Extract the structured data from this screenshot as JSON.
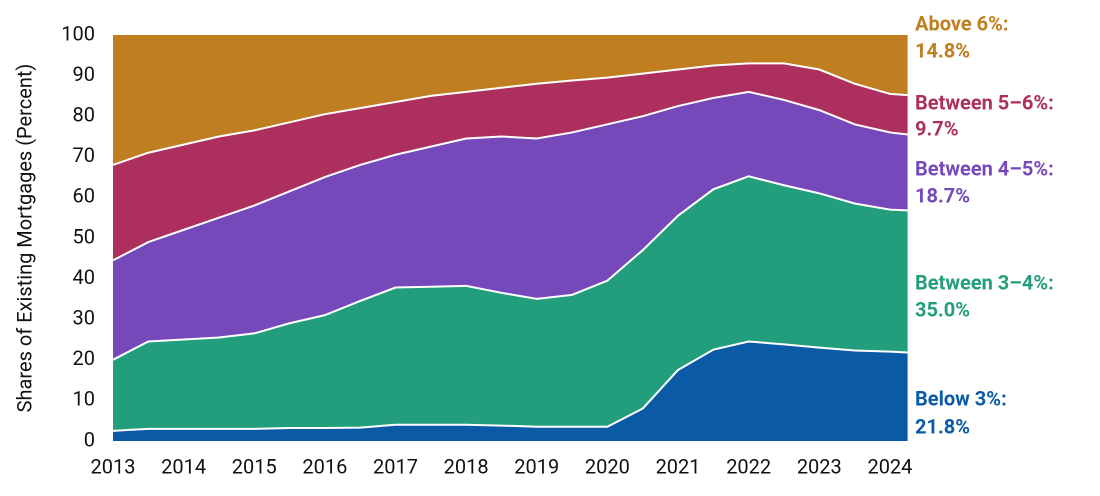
{
  "chart_data": {
    "type": "stacked-area",
    "y_label": "Shares of Existing Mortgages (Percent)",
    "x": [
      2013,
      2013.5,
      2014,
      2014.5,
      2015,
      2015.5,
      2016,
      2016.5,
      2017,
      2017.5,
      2018,
      2018.5,
      2019,
      2019.5,
      2020,
      2020.5,
      2021,
      2021.5,
      2022,
      2022.5,
      2023,
      2023.5,
      2024,
      2024.25
    ],
    "xlim": [
      2013,
      2024.25
    ],
    "xticks": [
      2013,
      2014,
      2015,
      2016,
      2017,
      2018,
      2019,
      2020,
      2021,
      2022,
      2023,
      2024
    ],
    "ylim": [
      0,
      100
    ],
    "yticks": [
      0,
      10,
      20,
      30,
      40,
      50,
      60,
      70,
      80,
      90,
      100
    ],
    "series": [
      {
        "name": "Below 3%:",
        "color": "#0a5aa6",
        "end_label": "21.8%",
        "values": [
          2.5,
          3,
          3,
          3,
          3,
          3.2,
          3.2,
          3.3,
          4,
          4,
          4,
          3.8,
          3.5,
          3.5,
          3.5,
          8,
          17.5,
          22.5,
          24.5,
          23.8,
          23,
          22.3,
          22,
          21.8
        ]
      },
      {
        "name": "Between 3–4%:",
        "color": "#229e7d",
        "end_label": "35.0%",
        "values": [
          17.5,
          21.5,
          22,
          22.5,
          23.5,
          25.8,
          27.8,
          31.2,
          33.8,
          34,
          34.2,
          32.7,
          31.5,
          32.5,
          36,
          39,
          38,
          39.5,
          40.7,
          39.2,
          38,
          36.2,
          35,
          35
        ]
      },
      {
        "name": "Between 4–5%:",
        "color": "#7649bb",
        "end_label": "18.7%",
        "values": [
          24.5,
          24.5,
          27,
          29.5,
          31.5,
          32.5,
          34,
          33.5,
          32.7,
          34.5,
          36.3,
          38.5,
          39.5,
          40,
          38.5,
          33,
          27,
          22.5,
          20.8,
          21,
          20.5,
          19.5,
          19,
          18.7
        ]
      },
      {
        "name": "Between 5–6%:",
        "color": "#ad2f5d",
        "end_label": "9.7%",
        "values": [
          23.5,
          22,
          21,
          20,
          18.5,
          17,
          15.5,
          14,
          13,
          12.5,
          11.5,
          12,
          13.5,
          12.8,
          11.5,
          10.5,
          9,
          8,
          7,
          9,
          10,
          10,
          9.5,
          9.7
        ]
      },
      {
        "name": "Above 6%:",
        "color": "#bf7e1f",
        "end_label": "14.8%",
        "values": [
          32,
          29,
          27,
          25,
          23.5,
          21.5,
          19.5,
          18,
          16.5,
          15,
          14,
          13,
          12,
          11.2,
          10.5,
          9.5,
          8.5,
          7.5,
          7,
          7,
          8.5,
          12,
          14.5,
          14.8
        ]
      }
    ]
  }
}
